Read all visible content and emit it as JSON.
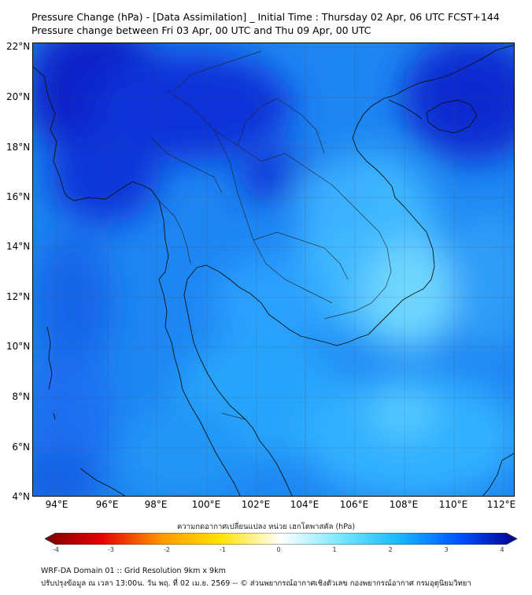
{
  "title_line1": "Pressure Change (hPa) - [Data Assimilation] _ Initial Time : Thursday 02 Apr, 06 UTC FCST+144",
  "title_line2": "Pressure change between Fri 03 Apr, 00 UTC and Thu 09 Apr, 00 UTC",
  "lat_labels": [
    "22°N",
    "20°N",
    "18°N",
    "16°N",
    "14°N",
    "12°N",
    "10°N",
    "8°N",
    "6°N",
    "4°N"
  ],
  "lon_labels": [
    "94°E",
    "96°E",
    "98°E",
    "100°E",
    "102°E",
    "104°E",
    "106°E",
    "108°E",
    "110°E",
    "112°E"
  ],
  "colorbar": {
    "caption": "ความกดอากาศเปลี่ยนแปลง หน่วย เฮกโตพาสคัล (hPa)",
    "ticks": [
      "-4",
      "-3",
      "-2",
      "-1",
      "0",
      "1",
      "2",
      "3",
      "4"
    ],
    "range": [
      -4,
      4
    ],
    "colors": [
      "#7a0000",
      "#e60000",
      "#ff9a00",
      "#ffe200",
      "#ffffff",
      "#7ee9ff",
      "#18b8ff",
      "#0050ff",
      "#00008c"
    ]
  },
  "colors": {
    "ocean": "#1a7df0",
    "deep": "#0a2bd2",
    "light": "#6cd6ff",
    "coast": "#111111"
  },
  "footer_line1": "WRF-DA Domain 01 :: Grid Resolution 9km x 9km",
  "footer_line2": "ปรับปรุงข้อมูล ณ เวลา 13:00น. วัน พฤ. ที่ 02 เม.ย. 2569 -- © ส่วนพยากรณ์อากาศเชิงตัวเลข กองพยากรณ์อากาศ กรมอุตุนิยมวิทยา"
}
